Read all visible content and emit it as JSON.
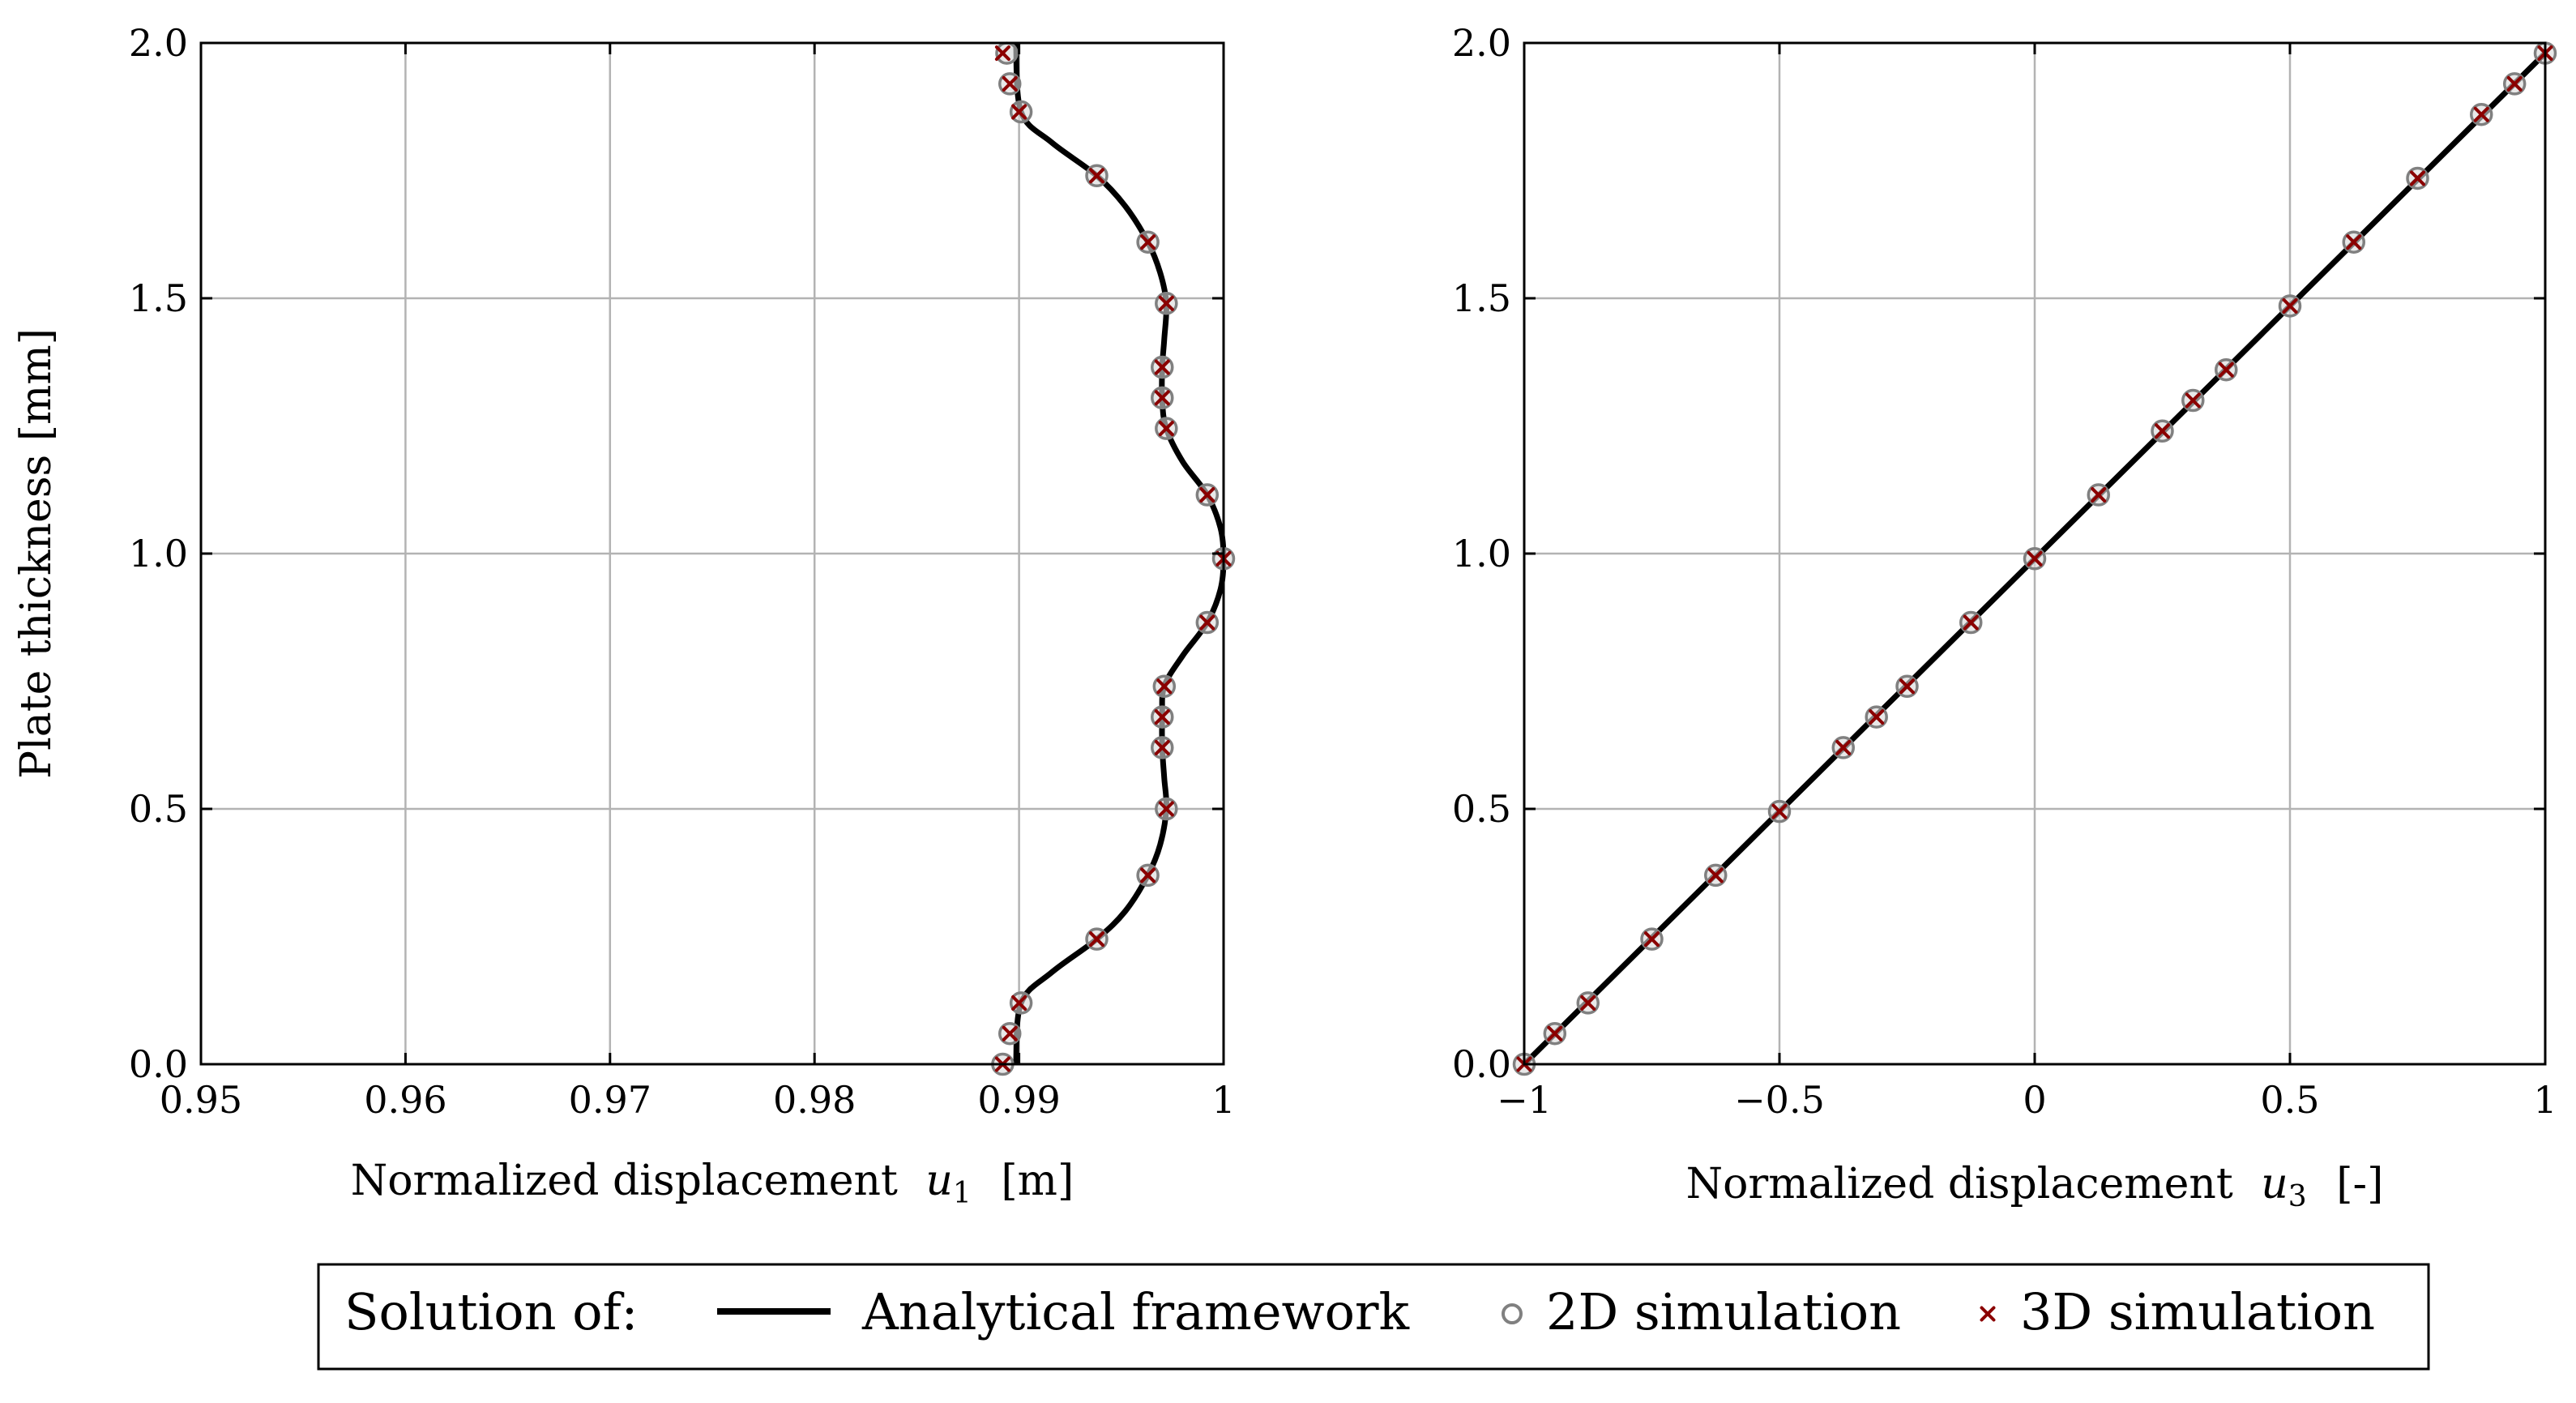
{
  "chart_data": [
    {
      "type": "line",
      "panel": "left",
      "xlabel_text": "Normalized displacement",
      "xlabel_var": "u",
      "xlabel_sub": "1",
      "xlabel_unit": "[m]",
      "ylabel": "Plate thickness [mm]",
      "xlim": [
        0.95,
        1.0
      ],
      "ylim": [
        0.0,
        2.0
      ],
      "xticks": [
        {
          "value": 0.95,
          "label": "0.95"
        },
        {
          "value": 0.96,
          "label": "0.96"
        },
        {
          "value": 0.97,
          "label": "0.97"
        },
        {
          "value": 0.98,
          "label": "0.98"
        },
        {
          "value": 0.99,
          "label": "0.99"
        },
        {
          "value": 1.0,
          "label": "1"
        }
      ],
      "yticks": [
        {
          "value": 0.0,
          "label": "0.0"
        },
        {
          "value": 0.5,
          "label": "0.5"
        },
        {
          "value": 1.0,
          "label": "1.0"
        },
        {
          "value": 1.5,
          "label": "1.5"
        },
        {
          "value": 2.0,
          "label": "2.0"
        }
      ],
      "grid": true,
      "series": [
        {
          "name": "Analytical framework",
          "style": "line",
          "color": "#000000",
          "points": [
            [
              0.98985,
              0.0
            ],
            [
              0.9901,
              0.12
            ],
            [
              0.9916,
              0.18
            ],
            [
              0.9938,
              0.245
            ],
            [
              0.9952,
              0.3
            ],
            [
              0.9963,
              0.37
            ],
            [
              0.9969,
              0.43
            ],
            [
              0.9972,
              0.5
            ],
            [
              0.9971,
              0.56
            ],
            [
              0.997,
              0.62
            ],
            [
              0.997,
              0.68
            ],
            [
              0.9971,
              0.74
            ],
            [
              0.998,
              0.8
            ],
            [
              0.9992,
              0.865
            ],
            [
              0.99985,
              0.93
            ],
            [
              1.0,
              0.99
            ],
            [
              0.99985,
              1.05
            ],
            [
              0.9992,
              1.115
            ],
            [
              0.998,
              1.18
            ],
            [
              0.9972,
              1.245
            ],
            [
              0.997,
              1.3
            ],
            [
              0.997,
              1.365
            ],
            [
              0.9971,
              1.42
            ],
            [
              0.9972,
              1.49
            ],
            [
              0.9969,
              1.55
            ],
            [
              0.9963,
              1.61
            ],
            [
              0.9952,
              1.68
            ],
            [
              0.9938,
              1.74
            ],
            [
              0.9916,
              1.805
            ],
            [
              0.9901,
              1.865
            ],
            [
              0.98985,
              2.0
            ]
          ]
        },
        {
          "name": "2D simulation",
          "style": "circle",
          "color": "#808080",
          "points": [
            [
              0.9892,
              0.0
            ],
            [
              0.98955,
              0.06
            ],
            [
              0.9901,
              0.12
            ],
            [
              0.9938,
              0.245
            ],
            [
              0.9963,
              0.37
            ],
            [
              0.9972,
              0.5
            ],
            [
              0.997,
              0.62
            ],
            [
              0.997,
              0.68
            ],
            [
              0.9971,
              0.74
            ],
            [
              0.9992,
              0.865
            ],
            [
              1.0,
              0.99
            ],
            [
              0.9992,
              1.115
            ],
            [
              0.9972,
              1.245
            ],
            [
              0.997,
              1.305
            ],
            [
              0.997,
              1.365
            ],
            [
              0.9972,
              1.49
            ],
            [
              0.9963,
              1.61
            ],
            [
              0.9938,
              1.74
            ],
            [
              0.9901,
              1.865
            ],
            [
              0.98955,
              1.92
            ],
            [
              0.9894,
              1.98
            ]
          ]
        },
        {
          "name": "3D simulation",
          "style": "cross",
          "color": "#8b0000",
          "points": [
            [
              0.9892,
              0.0
            ],
            [
              0.98955,
              0.06
            ],
            [
              0.99,
              0.12
            ],
            [
              0.9938,
              0.245
            ],
            [
              0.9963,
              0.37
            ],
            [
              0.9972,
              0.5
            ],
            [
              0.997,
              0.62
            ],
            [
              0.997,
              0.68
            ],
            [
              0.9971,
              0.74
            ],
            [
              0.9992,
              0.865
            ],
            [
              1.0,
              0.99
            ],
            [
              0.9992,
              1.115
            ],
            [
              0.9972,
              1.245
            ],
            [
              0.997,
              1.305
            ],
            [
              0.997,
              1.365
            ],
            [
              0.9972,
              1.49
            ],
            [
              0.9963,
              1.61
            ],
            [
              0.9938,
              1.74
            ],
            [
              0.99,
              1.865
            ],
            [
              0.98955,
              1.92
            ],
            [
              0.9892,
              1.98
            ]
          ]
        }
      ]
    },
    {
      "type": "line",
      "panel": "right",
      "xlabel_text": "Normalized displacement",
      "xlabel_var": "u",
      "xlabel_sub": "3",
      "xlabel_unit": "[-]",
      "ylabel": "",
      "xlim": [
        -1.0,
        1.0
      ],
      "ylim": [
        0.0,
        2.0
      ],
      "xticks": [
        {
          "value": -1.0,
          "label": "−1"
        },
        {
          "value": -0.5,
          "label": "−0.5"
        },
        {
          "value": 0.0,
          "label": "0"
        },
        {
          "value": 0.5,
          "label": "0.5"
        },
        {
          "value": 1.0,
          "label": "1"
        }
      ],
      "yticks": [
        {
          "value": 0.0,
          "label": "0.0"
        },
        {
          "value": 0.5,
          "label": "0.5"
        },
        {
          "value": 1.0,
          "label": "1.0"
        },
        {
          "value": 1.5,
          "label": "1.5"
        },
        {
          "value": 2.0,
          "label": "2.0"
        }
      ],
      "grid": true,
      "series": [
        {
          "name": "Analytical framework",
          "style": "line",
          "color": "#000000",
          "points": [
            [
              -1.0,
              0.0
            ],
            [
              1.0,
              1.98
            ]
          ]
        },
        {
          "name": "2D simulation",
          "style": "circle",
          "color": "#808080",
          "points": [
            [
              -1.0,
              0.0
            ],
            [
              -0.94,
              0.06
            ],
            [
              -0.875,
              0.12
            ],
            [
              -0.75,
              0.245
            ],
            [
              -0.625,
              0.37
            ],
            [
              -0.5,
              0.495
            ],
            [
              -0.375,
              0.62
            ],
            [
              -0.31,
              0.68
            ],
            [
              -0.25,
              0.74
            ],
            [
              -0.125,
              0.865
            ],
            [
              0.0,
              0.99
            ],
            [
              0.125,
              1.115
            ],
            [
              0.25,
              1.24
            ],
            [
              0.31,
              1.3
            ],
            [
              0.375,
              1.36
            ],
            [
              0.5,
              1.485
            ],
            [
              0.625,
              1.61
            ],
            [
              0.75,
              1.735
            ],
            [
              0.875,
              1.86
            ],
            [
              0.94,
              1.92
            ],
            [
              1.0,
              1.98
            ]
          ]
        },
        {
          "name": "3D simulation",
          "style": "cross",
          "color": "#8b0000",
          "points": [
            [
              -1.0,
              0.0
            ],
            [
              -0.94,
              0.06
            ],
            [
              -0.875,
              0.12
            ],
            [
              -0.75,
              0.245
            ],
            [
              -0.625,
              0.37
            ],
            [
              -0.5,
              0.495
            ],
            [
              -0.375,
              0.62
            ],
            [
              -0.31,
              0.68
            ],
            [
              -0.25,
              0.74
            ],
            [
              -0.125,
              0.865
            ],
            [
              0.0,
              0.99
            ],
            [
              0.125,
              1.115
            ],
            [
              0.25,
              1.24
            ],
            [
              0.31,
              1.3
            ],
            [
              0.375,
              1.36
            ],
            [
              0.5,
              1.485
            ],
            [
              0.625,
              1.61
            ],
            [
              0.75,
              1.735
            ],
            [
              0.875,
              1.86
            ],
            [
              0.94,
              1.92
            ],
            [
              1.0,
              1.98
            ]
          ]
        }
      ]
    }
  ],
  "legend": {
    "prefix": "Solution of:",
    "items": [
      {
        "label": "Analytical framework",
        "style": "line",
        "color": "#000000"
      },
      {
        "label": "2D simulation",
        "style": "circle",
        "color": "#808080"
      },
      {
        "label": "3D simulation",
        "style": "cross",
        "color": "#8b0000"
      }
    ]
  },
  "colors": {
    "grid": "#b3b3b3",
    "frame": "#000000",
    "analytical": "#000000",
    "sim2d": "#808080",
    "sim3d": "#8b0000"
  }
}
